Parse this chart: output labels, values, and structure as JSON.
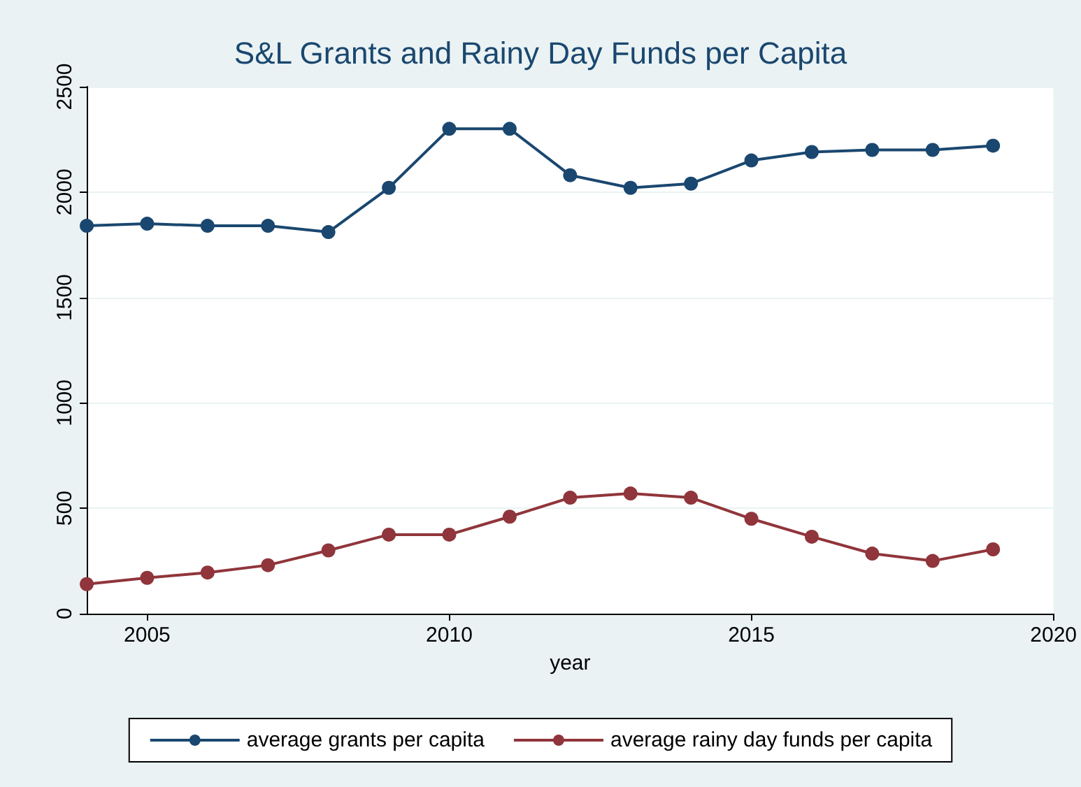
{
  "chart_data": {
    "type": "line",
    "title": "S&L Grants and Rainy Day Funds per Capita",
    "xlabel": "year",
    "x": [
      2004,
      2005,
      2006,
      2007,
      2008,
      2009,
      2010,
      2011,
      2012,
      2013,
      2014,
      2015,
      2016,
      2017,
      2018,
      2019
    ],
    "series": [
      {
        "name": "average grants per capita",
        "color": "#1a476f",
        "values": [
          1840,
          1850,
          1840,
          1840,
          1810,
          2020,
          2300,
          2300,
          2080,
          2020,
          2040,
          2150,
          2190,
          2200,
          2200,
          2220
        ]
      },
      {
        "name": "average rainy day funds per capita",
        "color": "#90353b",
        "values": [
          140,
          170,
          195,
          230,
          300,
          375,
          375,
          460,
          550,
          570,
          550,
          450,
          365,
          285,
          250,
          305
        ]
      }
    ],
    "xlim": [
      2004,
      2020
    ],
    "xticks": [
      2005,
      2010,
      2015,
      2020
    ],
    "ylim": [
      0,
      2500
    ],
    "yticks": [
      0,
      500,
      1000,
      1500,
      2000,
      2500
    ],
    "grid": "y",
    "legend": "bottom",
    "marker": "circle",
    "line_style": "solid"
  }
}
